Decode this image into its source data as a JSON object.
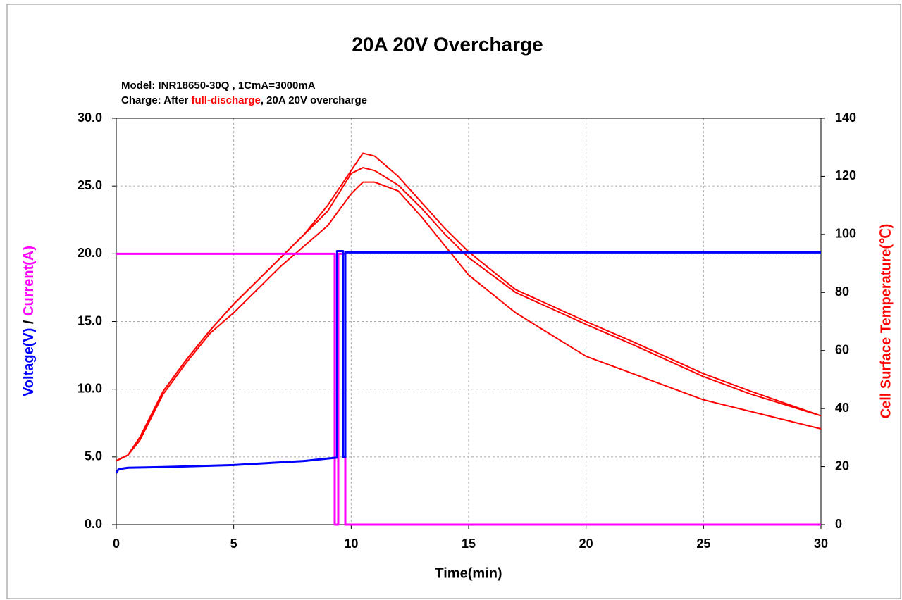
{
  "chart_data": {
    "type": "line",
    "title": "20A 20V  Overcharge",
    "annotations": [
      "Model: INR18650-30Q , 1CmA=3000mA",
      [
        "Charge: After ",
        "full-discharge",
        ", 20A 20V overcharge"
      ]
    ],
    "xlabel": "Time(min)",
    "ylabel": [
      "Voltage(V)",
      " / ",
      "Current(A)"
    ],
    "y2label": "Cell Surface Temperature(℃)",
    "xlim": [
      0,
      30
    ],
    "xticks": [
      0,
      5,
      10,
      15,
      20,
      25,
      30
    ],
    "ylim": [
      0,
      30
    ],
    "yticks": [
      {
        "value": 0,
        "label": "0.0"
      },
      {
        "value": 5,
        "label": "5.0"
      },
      {
        "value": 10,
        "label": "10.0"
      },
      {
        "value": 15,
        "label": "15.0"
      },
      {
        "value": 20,
        "label": "20.0"
      },
      {
        "value": 25,
        "label": "25.0"
      },
      {
        "value": 30,
        "label": "30.0"
      }
    ],
    "y2lim": [
      0,
      140
    ],
    "y2ticks": [
      0,
      20,
      40,
      60,
      80,
      100,
      120,
      140
    ],
    "grid": true,
    "series": [
      {
        "color": "#ff0000",
        "axis": "y2",
        "x": [
          0,
          0.5,
          1,
          2,
          3,
          4,
          5,
          6,
          7,
          8,
          9,
          10,
          10.5,
          11,
          12,
          13,
          14,
          15,
          17,
          20,
          22,
          25,
          27,
          30
        ],
        "values": [
          22,
          24,
          30,
          46,
          57,
          67,
          76,
          84,
          92,
          100,
          110,
          122,
          128,
          127,
          120,
          111,
          102,
          94,
          81,
          70,
          63,
          52,
          46,
          37.5
        ]
      },
      {
        "color": "#ff0000",
        "axis": "y2",
        "x": [
          0,
          0.5,
          1,
          2,
          3,
          4,
          5,
          6,
          7,
          8,
          9,
          10,
          10.5,
          11,
          12,
          13,
          14,
          15,
          17,
          20,
          22,
          25,
          27,
          30
        ],
        "values": [
          22,
          24,
          30,
          46,
          57,
          67,
          76,
          84,
          92,
          100,
          108,
          121,
          123,
          122,
          117,
          109,
          100,
          92,
          80,
          69,
          62,
          51,
          45,
          37.5
        ]
      },
      {
        "color": "#ff0000",
        "axis": "y2",
        "x": [
          0,
          0.5,
          1,
          2,
          3,
          4,
          5,
          6,
          7,
          8,
          9,
          10,
          10.5,
          11,
          12,
          13,
          14,
          15,
          17,
          20,
          22,
          25,
          27,
          30
        ],
        "values": [
          22,
          24,
          29,
          45,
          56,
          66,
          73,
          81,
          89,
          96,
          103,
          114,
          118,
          118,
          115,
          106,
          96,
          86,
          73,
          58,
          52,
          43,
          39,
          33
        ]
      },
      {
        "color": "#ff00ff",
        "x": [
          0,
          9.3,
          9.3,
          9.45,
          9.45,
          9.75,
          9.75,
          30
        ],
        "values": [
          20,
          20,
          0,
          0,
          20,
          20,
          0,
          0
        ]
      },
      {
        "color": "#0000ff",
        "x": [
          0,
          0.1,
          0.5,
          2,
          5,
          8,
          9.4,
          9.4,
          9.65,
          9.65,
          9.75,
          9.75,
          30
        ],
        "values": [
          3.8,
          4.1,
          4.2,
          4.25,
          4.4,
          4.7,
          4.95,
          20.2,
          20.2,
          5.0,
          5.0,
          20.1,
          20.1
        ]
      }
    ]
  }
}
